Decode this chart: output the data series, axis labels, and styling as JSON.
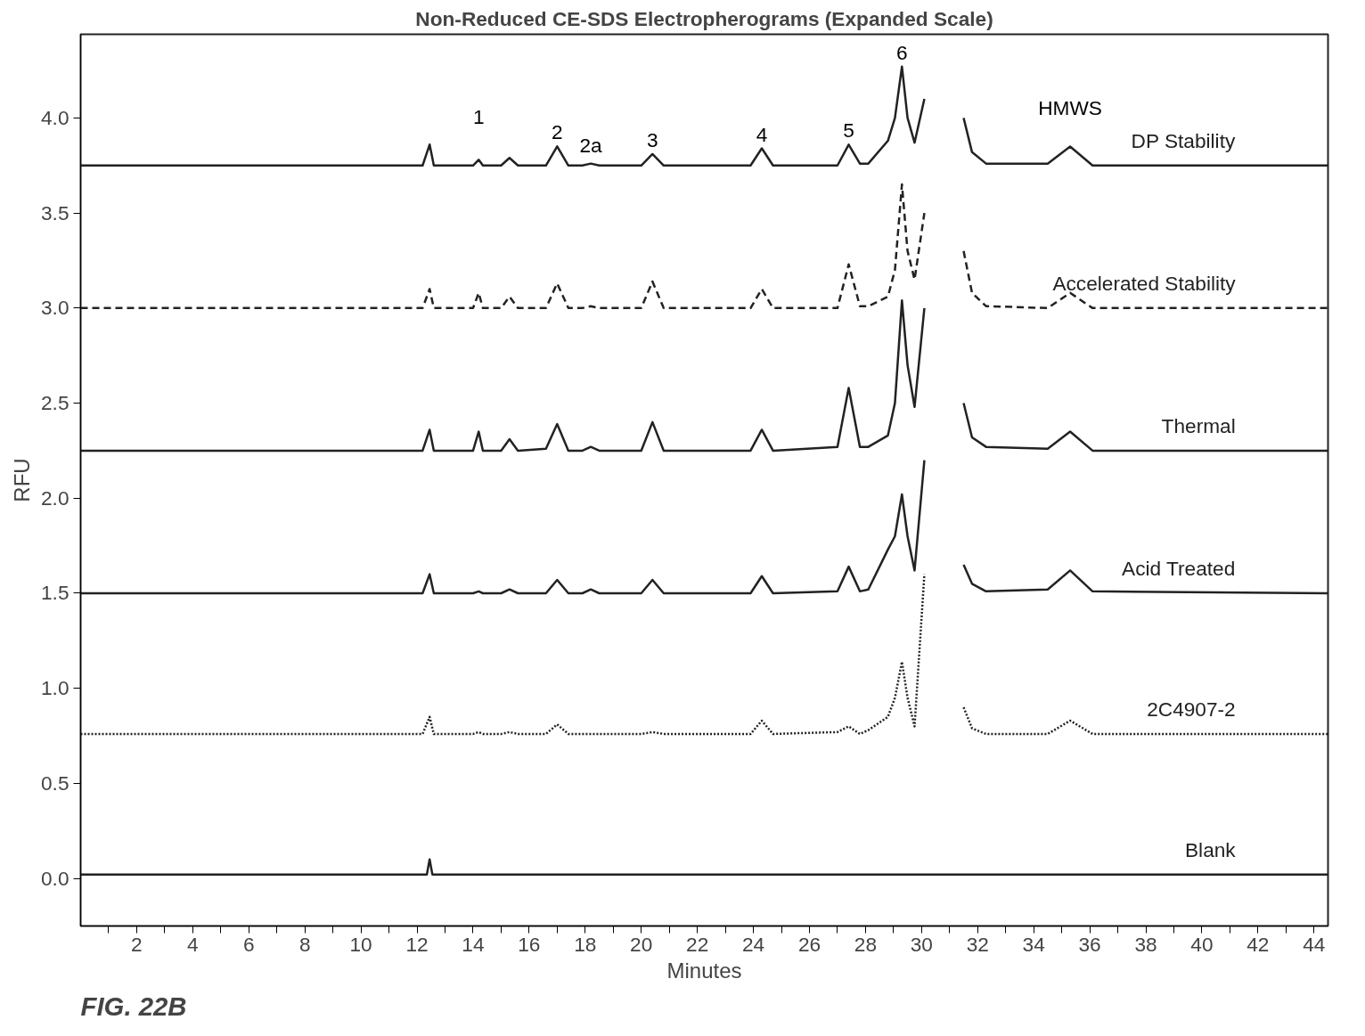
{
  "chart_data": {
    "type": "line",
    "title": "Non-Reduced CE-SDS Electropherograms (Expanded Scale)",
    "xlabel": "Minutes",
    "ylabel": "RFU",
    "x": [
      0,
      12.2,
      12.45,
      12.6,
      14.0,
      14.2,
      14.35,
      15.0,
      15.3,
      15.6,
      16.6,
      17.0,
      17.4,
      17.9,
      18.2,
      18.5,
      20.0,
      20.4,
      20.8,
      23.9,
      24.3,
      24.7,
      27.0,
      27.4,
      27.8,
      28.1,
      28.8,
      29.05,
      29.3,
      29.5,
      29.75,
      30.1,
      30.35,
      31.3,
      31.5,
      31.8,
      32.3,
      34.5,
      35.3,
      36.1,
      44.5
    ],
    "series": [
      {
        "name": "DP Stability",
        "color": "#222222",
        "line_style": "solid",
        "values": [
          3.75,
          3.75,
          3.86,
          3.75,
          3.75,
          3.78,
          3.75,
          3.75,
          3.79,
          3.75,
          3.75,
          3.85,
          3.75,
          3.75,
          3.76,
          3.75,
          3.75,
          3.81,
          3.75,
          3.75,
          3.84,
          3.75,
          3.75,
          3.86,
          3.76,
          3.76,
          3.88,
          4.0,
          4.27,
          4.0,
          3.87,
          4.1,
          null,
          null,
          4.0,
          3.82,
          3.76,
          3.76,
          3.85,
          3.75,
          3.75
        ]
      },
      {
        "name": "Accelerated Stability",
        "color": "#222222",
        "line_style": "dashed",
        "values": [
          3.0,
          3.0,
          3.1,
          3.0,
          3.0,
          3.08,
          3.0,
          3.0,
          3.06,
          3.0,
          3.0,
          3.13,
          3.0,
          3.0,
          3.01,
          3.0,
          3.0,
          3.14,
          3.0,
          3.0,
          3.1,
          3.0,
          3.0,
          3.23,
          3.01,
          3.01,
          3.06,
          3.2,
          3.65,
          3.3,
          3.15,
          3.5,
          null,
          null,
          3.3,
          3.08,
          3.01,
          3.0,
          3.08,
          3.0,
          3.0
        ]
      },
      {
        "name": "Thermal",
        "color": "#222222",
        "line_style": "solid",
        "values": [
          2.25,
          2.25,
          2.36,
          2.25,
          2.25,
          2.35,
          2.25,
          2.25,
          2.31,
          2.25,
          2.26,
          2.39,
          2.25,
          2.25,
          2.27,
          2.25,
          2.25,
          2.4,
          2.25,
          2.25,
          2.36,
          2.25,
          2.27,
          2.58,
          2.27,
          2.27,
          2.33,
          2.5,
          3.04,
          2.7,
          2.48,
          3.0,
          null,
          null,
          2.5,
          2.32,
          2.27,
          2.26,
          2.35,
          2.25,
          2.25
        ]
      },
      {
        "name": "Acid Treated",
        "color": "#222222",
        "line_style": "solid",
        "values": [
          1.5,
          1.5,
          1.6,
          1.5,
          1.5,
          1.51,
          1.5,
          1.5,
          1.52,
          1.5,
          1.5,
          1.57,
          1.5,
          1.5,
          1.52,
          1.5,
          1.5,
          1.57,
          1.5,
          1.5,
          1.59,
          1.5,
          1.51,
          1.64,
          1.51,
          1.52,
          1.73,
          1.8,
          2.02,
          1.8,
          1.62,
          2.2,
          null,
          null,
          1.65,
          1.55,
          1.51,
          1.52,
          1.62,
          1.51,
          1.5
        ]
      },
      {
        "name": "2C4907-2",
        "color": "#222222",
        "line_style": "dotted",
        "values": [
          0.76,
          0.76,
          0.85,
          0.76,
          0.76,
          0.77,
          0.76,
          0.76,
          0.77,
          0.76,
          0.76,
          0.81,
          0.76,
          0.76,
          0.76,
          0.76,
          0.76,
          0.77,
          0.76,
          0.76,
          0.83,
          0.76,
          0.77,
          0.8,
          0.76,
          0.78,
          0.85,
          0.95,
          1.14,
          0.95,
          0.8,
          1.6,
          null,
          null,
          0.9,
          0.79,
          0.76,
          0.76,
          0.83,
          0.76,
          0.76
        ]
      },
      {
        "name": "Blank",
        "color": "#222222",
        "line_style": "solid",
        "x": [
          0,
          12.35,
          12.45,
          12.55,
          44.5
        ],
        "values": [
          0.02,
          0.02,
          0.1,
          0.02,
          0.02
        ]
      }
    ],
    "xlim": [
      0,
      44.5
    ],
    "ylim": [
      -0.25,
      4.44
    ],
    "xticks": [
      {
        "value": 1,
        "label": null
      },
      2,
      {
        "value": 3,
        "label": null
      },
      4,
      {
        "value": 5,
        "label": null
      },
      6,
      {
        "value": 7,
        "label": null
      },
      8,
      {
        "value": 9,
        "label": null
      },
      10,
      {
        "value": 11,
        "label": null
      },
      12,
      {
        "value": 13,
        "label": null
      },
      14,
      {
        "value": 15,
        "label": null
      },
      16,
      {
        "value": 17,
        "label": null
      },
      18,
      {
        "value": 19,
        "label": null
      },
      20,
      {
        "value": 21,
        "label": null
      },
      22,
      {
        "value": 23,
        "label": null
      },
      24,
      {
        "value": 25,
        "label": null
      },
      26,
      {
        "value": 27,
        "label": null
      },
      28,
      {
        "value": 29,
        "label": null
      },
      30,
      {
        "value": 31,
        "label": null
      },
      32,
      {
        "value": 33,
        "label": null
      },
      34,
      {
        "value": 35,
        "label": null
      },
      36,
      {
        "value": 37,
        "label": null
      },
      38,
      {
        "value": 39,
        "label": null
      },
      40,
      {
        "value": 41,
        "label": null
      },
      42,
      {
        "value": 43,
        "label": null
      },
      44
    ],
    "yticks": [
      {
        "value": 0,
        "label": "0.0"
      },
      {
        "value": 0.5,
        "label": "0.5"
      },
      {
        "value": 1,
        "label": "1.0"
      },
      {
        "value": 1.5,
        "label": "1.5"
      },
      {
        "value": 2,
        "label": "2.0"
      },
      {
        "value": 2.5,
        "label": "2.5"
      },
      {
        "value": 3,
        "label": "3.0"
      },
      {
        "value": 3.5,
        "label": "3.5"
      },
      {
        "value": 4,
        "label": "4.0"
      }
    ],
    "grid": false,
    "legend": false,
    "marker": "none",
    "annotations": [
      {
        "text": "1",
        "x": 14.2,
        "y": 3.78
      },
      {
        "text": "2",
        "x": 17.0,
        "y": 3.85
      },
      {
        "text": "2a",
        "x": 18.2,
        "y": 3.76
      },
      {
        "text": "3",
        "x": 20.4,
        "y": 3.81
      },
      {
        "text": "4",
        "x": 24.3,
        "y": 3.84
      },
      {
        "text": "5",
        "x": 27.4,
        "y": 3.86
      },
      {
        "text": "6",
        "x": 29.3,
        "y": 4.27
      },
      {
        "text": "HMWS",
        "x": 35.3,
        "y": 3.85
      },
      "FIG. 22B"
    ]
  }
}
